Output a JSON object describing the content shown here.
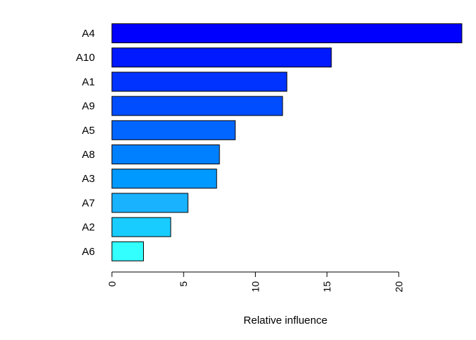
{
  "chart_data": {
    "type": "bar",
    "orientation": "horizontal",
    "categories": [
      "A4",
      "A10",
      "A1",
      "A9",
      "A5",
      "A8",
      "A3",
      "A7",
      "A2",
      "A6"
    ],
    "values": [
      24.4,
      15.3,
      12.2,
      11.9,
      8.6,
      7.5,
      7.3,
      5.3,
      4.1,
      2.2
    ],
    "bar_colors": [
      "#0000ff",
      "#0019ff",
      "#0033ff",
      "#004cff",
      "#0066ff",
      "#0080ff",
      "#0099ff",
      "#19b2ff",
      "#19ccff",
      "#33ffff"
    ],
    "xlabel": "Relative influence",
    "ylabel": "",
    "title": "",
    "xlim": [
      0,
      24.4
    ],
    "xticks": [
      0,
      5,
      10,
      15,
      20
    ],
    "grid": false,
    "legend": "none"
  }
}
